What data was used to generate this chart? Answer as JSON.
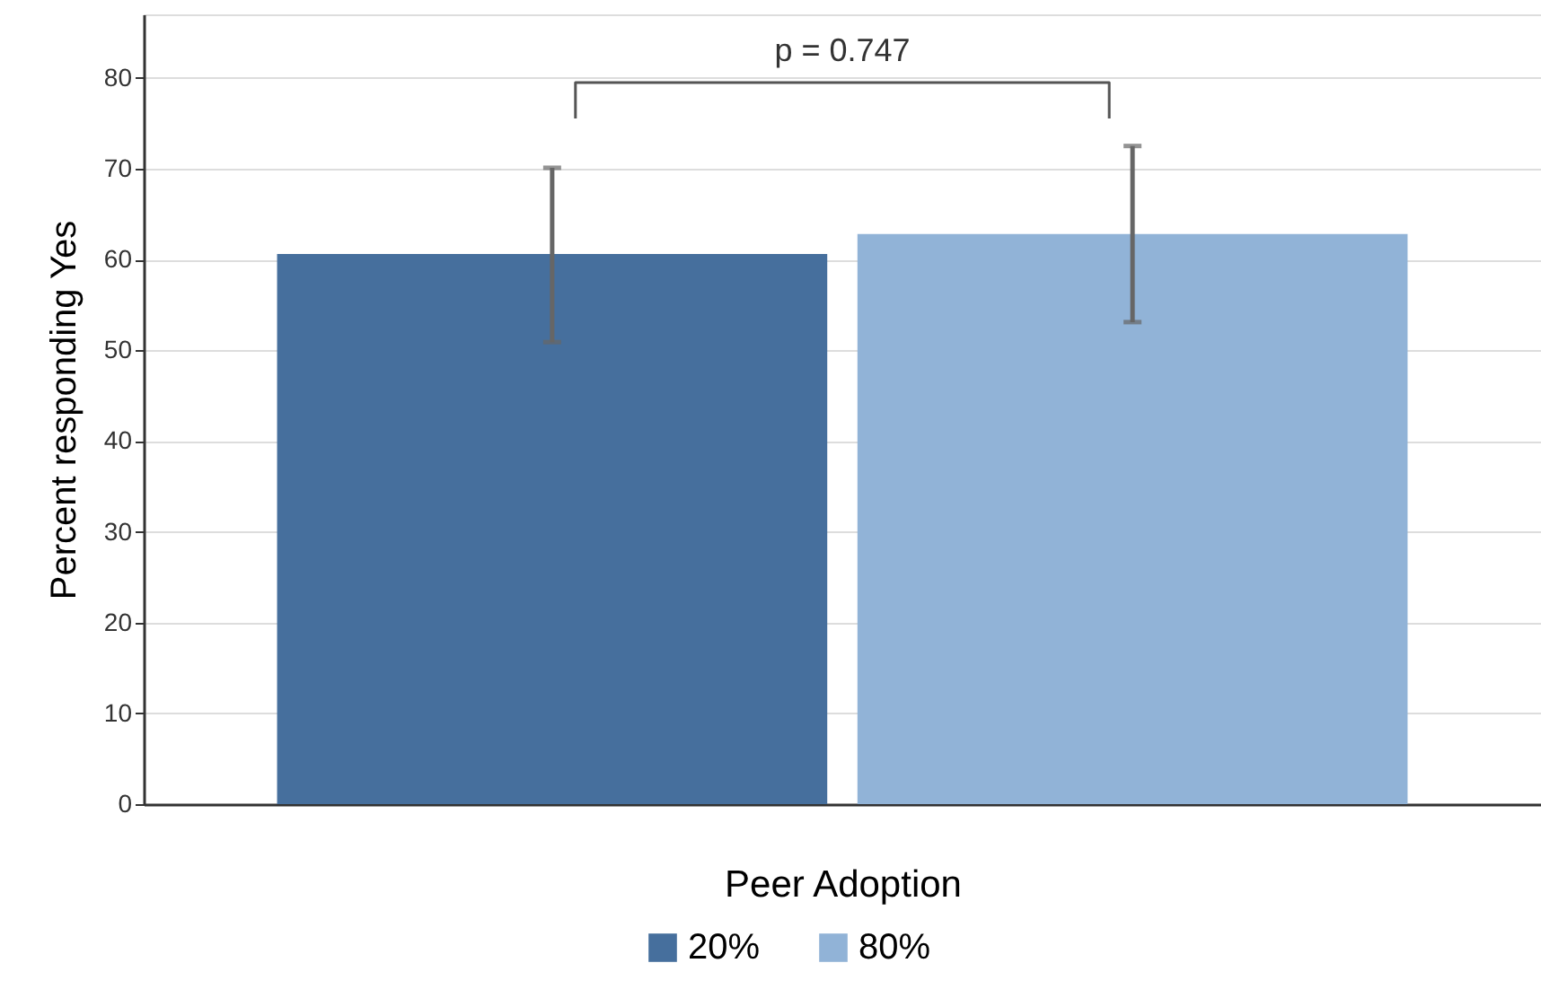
{
  "chart_data": {
    "type": "bar",
    "categories": [
      null
    ],
    "xlabel": "Peer Adoption",
    "ylabel": "Percent responding Yes",
    "series": [
      {
        "name": "20%",
        "color": "#466f9d",
        "values": [
          60.6
        ],
        "errors": [
          [
            50.9,
            70.1
          ]
        ]
      },
      {
        "name": "80%",
        "color": "#91b3d7",
        "values": [
          62.8
        ],
        "errors": [
          [
            53.1,
            72.5
          ]
        ]
      }
    ],
    "ylim": [
      0,
      87
    ],
    "yticks": [
      0,
      10,
      20,
      30,
      40,
      50,
      60,
      70,
      80
    ],
    "grid": "y",
    "legend": "bottom",
    "annotations": [
      "p = 0.747"
    ]
  }
}
